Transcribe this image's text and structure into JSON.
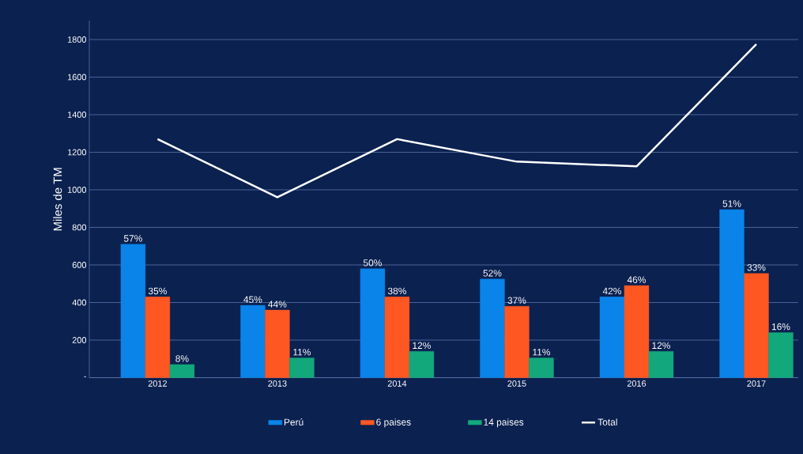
{
  "chart_data": {
    "type": "bar",
    "ylabel": "Miles de TM",
    "categories": [
      "2012",
      "2013",
      "2014",
      "2015",
      "2016",
      "2017"
    ],
    "series": [
      {
        "name": "Perú",
        "color": "#0a84e8",
        "values": [
          710,
          385,
          580,
          525,
          430,
          895
        ]
      },
      {
        "name": "6 paises",
        "color": "#ff5722",
        "values": [
          430,
          360,
          430,
          380,
          490,
          555
        ]
      },
      {
        "name": "14 paises",
        "color": "#13a87b",
        "values": [
          70,
          105,
          140,
          105,
          140,
          240
        ]
      },
      {
        "name": "Total",
        "type": "line",
        "color": "#ffffff",
        "values": [
          1270,
          960,
          1270,
          1150,
          1125,
          1775
        ]
      }
    ],
    "annotations": [
      "57%",
      "45%",
      "50%",
      "52%",
      "42%",
      "51%",
      "35%",
      "44%",
      "38%",
      "37%",
      "46%",
      "33%",
      "8%",
      "11%",
      "12%",
      "11%",
      "12%",
      "16%"
    ],
    "ylim": [
      0,
      1900
    ],
    "yticks": [
      {
        "value": 0,
        "label": "-"
      },
      200,
      400,
      600,
      800,
      1000,
      1200,
      1400,
      1600,
      1800
    ],
    "grid": "y",
    "legend": "bottom"
  }
}
